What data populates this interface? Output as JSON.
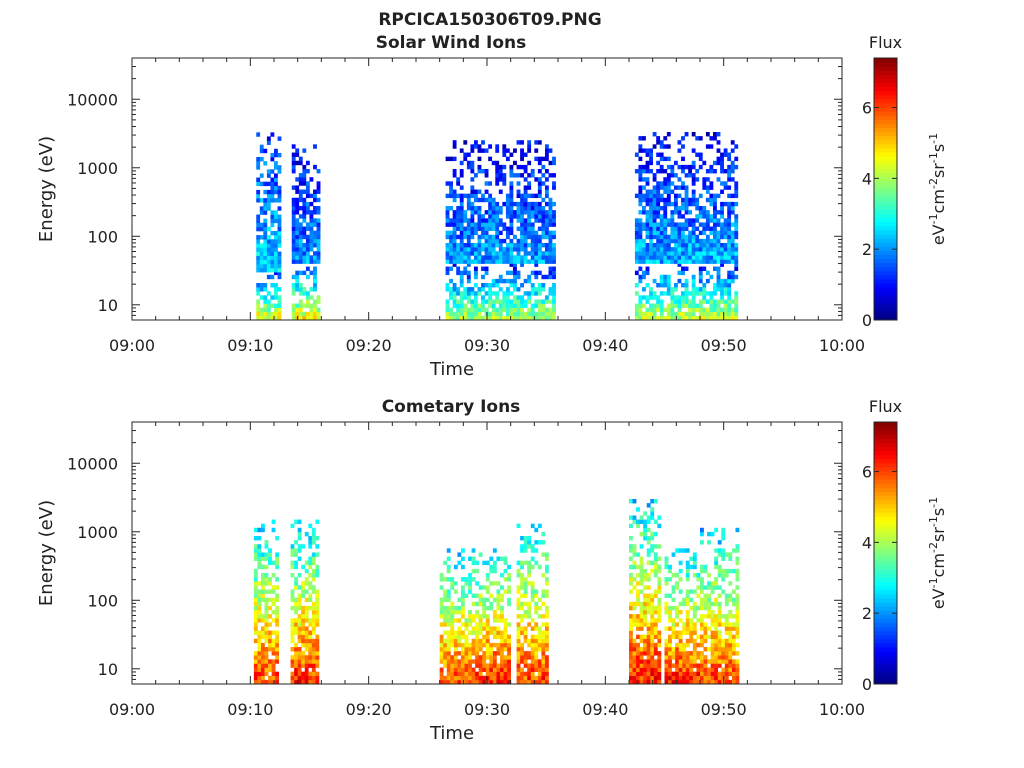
{
  "header": {
    "filename": "RPCICA150306T09.PNG"
  },
  "colorbar": {
    "label": "Flux",
    "unit_main": "eV",
    "unit_parts": [
      {
        "t": "eV",
        "sup": false
      },
      {
        "t": "-1",
        "sup": true
      },
      {
        "t": "cm",
        "sup": false
      },
      {
        "t": "-2",
        "sup": true
      },
      {
        "t": "sr",
        "sup": false
      },
      {
        "t": "-1",
        "sup": true
      },
      {
        "t": "s",
        "sup": false
      },
      {
        "t": "-1",
        "sup": true
      }
    ],
    "range": [
      0,
      7.4
    ],
    "ticks": [
      0,
      2,
      4,
      6
    ],
    "colormap": [
      "#00007f",
      "#0000ff",
      "#007fff",
      "#00ffff",
      "#7fff7f",
      "#ffff00",
      "#ff7f00",
      "#ff0000",
      "#7f0000"
    ]
  },
  "chart_data": [
    {
      "type": "heatmap",
      "title": "Solar Wind Ions",
      "xlabel": "Time",
      "ylabel": "Energy (eV)",
      "x_range_min": [
        0,
        60
      ],
      "x_ticks": [
        "09:00",
        "09:10",
        "09:20",
        "09:30",
        "09:40",
        "09:50",
        "10:00"
      ],
      "y_scale": "log",
      "y_range": [
        6,
        40000
      ],
      "y_ticks": [
        10,
        100,
        1000,
        10000
      ],
      "y_tick_labels": [
        "10",
        "100",
        "1000",
        "10000"
      ],
      "bursts": [
        {
          "t_start_min": 10.5,
          "t_end_min": 12.5,
          "e_min": 6,
          "e_max": 30,
          "flux_low_e": 4.5,
          "flux_high_e": 1.0
        },
        {
          "t_start_min": 10.5,
          "t_end_min": 12.5,
          "e_min": 30,
          "e_max": 3000,
          "flux_low_e": 2.5,
          "flux_high_e": 1.2
        },
        {
          "t_start_min": 13.5,
          "t_end_min": 15.8,
          "e_min": 6,
          "e_max": 40,
          "flux_low_e": 4.6,
          "flux_high_e": 1.2
        },
        {
          "t_start_min": 13.5,
          "t_end_min": 15.8,
          "e_min": 40,
          "e_max": 2000,
          "flux_low_e": 2.0,
          "flux_high_e": 0.8
        },
        {
          "t_start_min": 26.5,
          "t_end_min": 35.5,
          "e_min": 6,
          "e_max": 40,
          "flux_low_e": 4.0,
          "flux_high_e": 1.0
        },
        {
          "t_start_min": 26.5,
          "t_end_min": 35.5,
          "e_min": 40,
          "e_max": 2500,
          "flux_low_e": 2.0,
          "flux_high_e": 0.8
        },
        {
          "t_start_min": 42.5,
          "t_end_min": 51.0,
          "e_min": 6,
          "e_max": 40,
          "flux_low_e": 4.2,
          "flux_high_e": 1.0
        },
        {
          "t_start_min": 42.5,
          "t_end_min": 51.0,
          "e_min": 40,
          "e_max": 3000,
          "flux_low_e": 2.2,
          "flux_high_e": 0.8
        }
      ]
    },
    {
      "type": "heatmap",
      "title": "Cometary Ions",
      "xlabel": "Time",
      "ylabel": "Energy (eV)",
      "x_range_min": [
        0,
        60
      ],
      "x_ticks": [
        "09:00",
        "09:10",
        "09:20",
        "09:30",
        "09:40",
        "09:50",
        "10:00"
      ],
      "y_scale": "log",
      "y_range": [
        6,
        40000
      ],
      "y_ticks": [
        10,
        100,
        1000,
        10000
      ],
      "y_tick_labels": [
        "10",
        "100",
        "1000",
        "10000"
      ],
      "bursts": [
        {
          "t_start_min": 10.3,
          "t_end_min": 12.3,
          "e_min": 6,
          "e_max": 1500,
          "flux_low_e": 6.0,
          "flux_high_e": 2.3
        },
        {
          "t_start_min": 13.4,
          "t_end_min": 15.8,
          "e_min": 6,
          "e_max": 1500,
          "flux_low_e": 6.2,
          "flux_high_e": 2.3
        },
        {
          "t_start_min": 26.0,
          "t_end_min": 28.8,
          "e_min": 6,
          "e_max": 500,
          "flux_low_e": 6.0,
          "flux_high_e": 2.5
        },
        {
          "t_start_min": 29.0,
          "t_end_min": 31.8,
          "e_min": 6,
          "e_max": 600,
          "flux_low_e": 6.2,
          "flux_high_e": 2.5
        },
        {
          "t_start_min": 32.5,
          "t_end_min": 35.0,
          "e_min": 6,
          "e_max": 1200,
          "flux_low_e": 6.0,
          "flux_high_e": 2.5
        },
        {
          "t_start_min": 42.0,
          "t_end_min": 44.5,
          "e_min": 6,
          "e_max": 3000,
          "flux_low_e": 6.3,
          "flux_high_e": 2.4
        },
        {
          "t_start_min": 45.0,
          "t_end_min": 47.8,
          "e_min": 6,
          "e_max": 500,
          "flux_low_e": 6.3,
          "flux_high_e": 2.5
        },
        {
          "t_start_min": 48.0,
          "t_end_min": 51.0,
          "e_min": 6,
          "e_max": 1000,
          "flux_low_e": 6.0,
          "flux_high_e": 2.4
        }
      ]
    }
  ]
}
